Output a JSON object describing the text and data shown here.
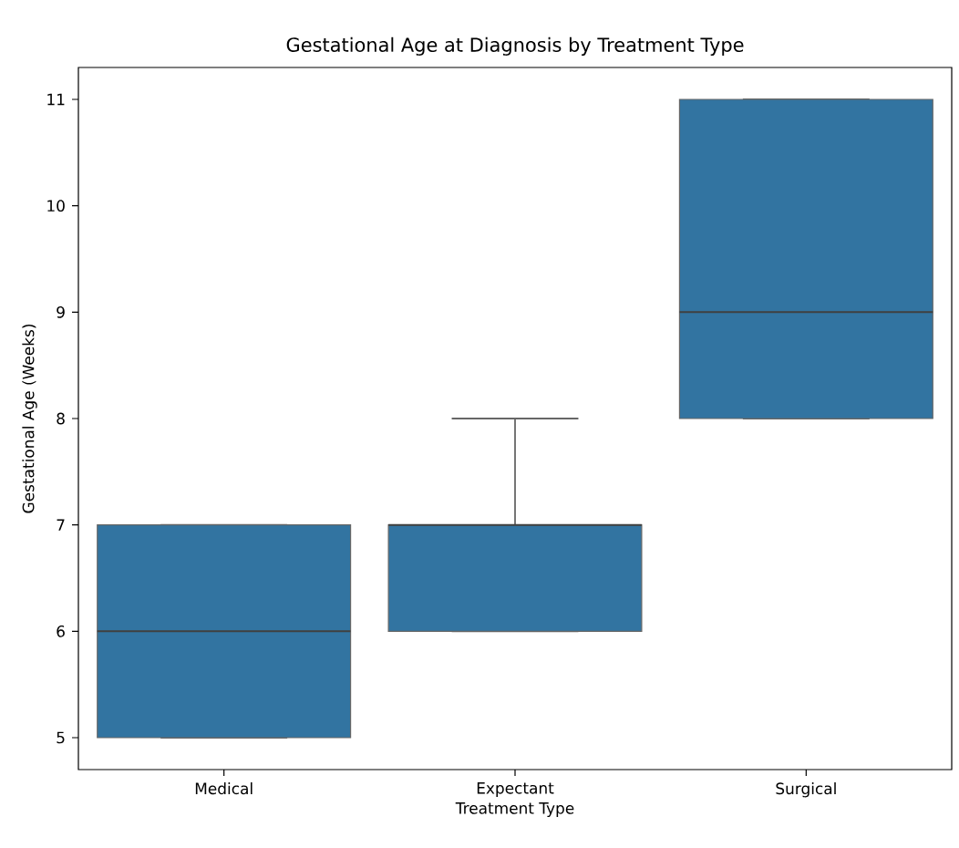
{
  "chart_data": {
    "type": "box",
    "title": "Gestational Age at Diagnosis by Treatment Type",
    "xlabel": "Treatment Type",
    "ylabel": "Gestational Age (Weeks)",
    "categories": [
      "Medical",
      "Expectant",
      "Surgical"
    ],
    "boxes": [
      {
        "low": 5,
        "q1": 5,
        "median": 6,
        "q3": 7,
        "high": 7
      },
      {
        "low": 6,
        "q1": 6,
        "median": 7,
        "q3": 7,
        "high": 8
      },
      {
        "low": 8,
        "q1": 8,
        "median": 9,
        "q3": 11,
        "high": 11
      }
    ],
    "color": "#3274a1",
    "ylim": [
      4.7,
      11.3
    ],
    "yticks": [
      5,
      6,
      7,
      8,
      9,
      10,
      11
    ],
    "grid": false
  }
}
